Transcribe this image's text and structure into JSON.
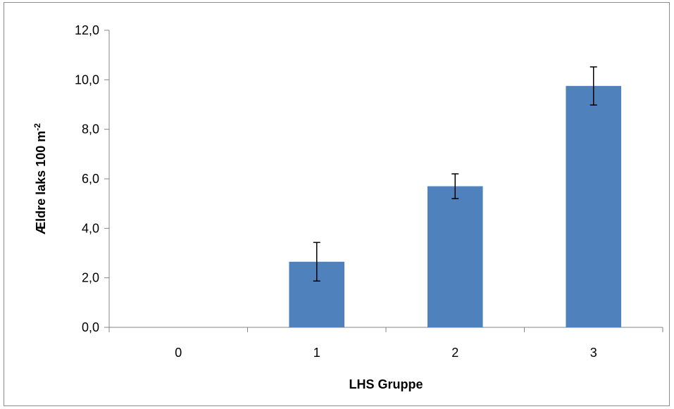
{
  "chart_data": {
    "type": "bar",
    "categories": [
      "0",
      "1",
      "2",
      "3"
    ],
    "series": [
      {
        "values": [
          0.0,
          2.65,
          5.7,
          9.75
        ],
        "error": [
          0.0,
          0.78,
          0.5,
          0.77
        ],
        "color": "#4f81bd"
      }
    ],
    "xlabel": "LHS Gruppe",
    "ylabel": "Ældre laks 100 m",
    "ylabel_superscript": "-2",
    "ylim": [
      0,
      12
    ],
    "yticks": [
      0,
      2,
      4,
      6,
      8,
      10,
      12
    ],
    "ytick_labels": [
      "0,0",
      "2,0",
      "4,0",
      "6,0",
      "8,0",
      "10,0",
      "12,0"
    ],
    "grid": false,
    "legend": "none"
  }
}
